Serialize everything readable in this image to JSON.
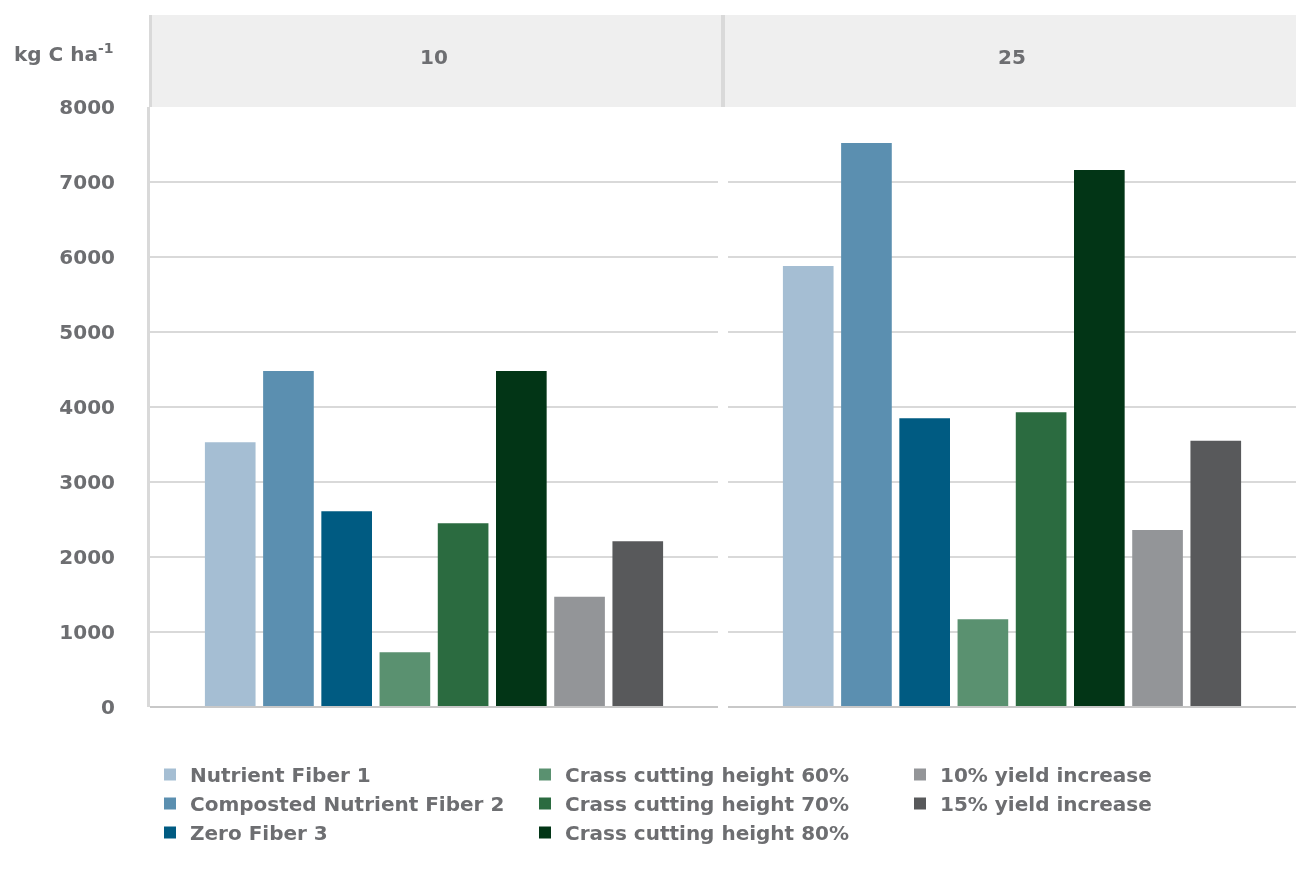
{
  "chart_data": {
    "type": "bar",
    "ylabel": "kg C ha$^{-1}$",
    "categories": [
      "10",
      "25"
    ],
    "series": [
      {
        "name": "Nutrient Fiber 1",
        "color": "#a5bed3",
        "values": [
          3530,
          5880
        ]
      },
      {
        "name": "Composted Nutrient Fiber 2",
        "color": "#5b8fb0",
        "values": [
          4480,
          7520
        ]
      },
      {
        "name": "Zero Fiber 3",
        "color": "#005b82",
        "values": [
          2610,
          3850
        ]
      },
      {
        "name": "Crass cutting height 60%",
        "color": "#5a9170",
        "values": [
          730,
          1170
        ]
      },
      {
        "name": "Crass cutting height 70%",
        "color": "#2b6b40",
        "values": [
          2450,
          3930
        ]
      },
      {
        "name": "Crass cutting height 80%",
        "color": "#023516",
        "values": [
          4480,
          7160
        ]
      },
      {
        "name": "10% yield increase",
        "color": "#939598",
        "values": [
          1470,
          2360
        ]
      },
      {
        "name": "15% yield increase",
        "color": "#58595b",
        "values": [
          2210,
          3550
        ]
      }
    ],
    "ylim": [
      0,
      8000
    ],
    "yticks": [
      0,
      1000,
      2000,
      3000,
      4000,
      5000,
      6000,
      7000,
      8000
    ],
    "grid": "y",
    "legend": "bottom"
  }
}
